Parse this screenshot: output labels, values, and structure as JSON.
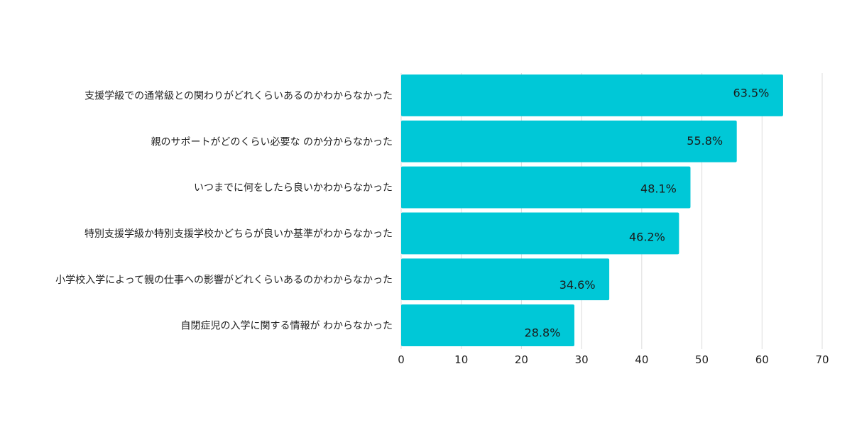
{
  "chart_data": {
    "type": "bar",
    "orientation": "horizontal",
    "categories": [
      "支援学級での通常級との関わりがどれくらいあるのかわからなかった",
      "親のサポートがどのくらい必要な のか分からなかった",
      "いつまでに何をしたら良いかわからなかった",
      "特別支援学級か特別支援学校かどちらが良いか基準がわからなかった",
      "小学校入学によって親の仕事への影響がどれくらいあるのかわからなかった",
      "自閉症児の入学に関する情報が わからなかった"
    ],
    "values": [
      63.5,
      55.8,
      48.1,
      46.2,
      34.6,
      28.8
    ],
    "data_labels": [
      "63.5%",
      "55.8%",
      "48.1%",
      "46.2%",
      "34.6%",
      "28.8%"
    ],
    "xlim": [
      0,
      70
    ],
    "x_ticks": [
      0,
      10,
      20,
      30,
      40,
      50,
      60,
      70
    ],
    "grid": true,
    "bar_color": "#00c8d7",
    "title": "",
    "xlabel": "",
    "ylabel": ""
  }
}
